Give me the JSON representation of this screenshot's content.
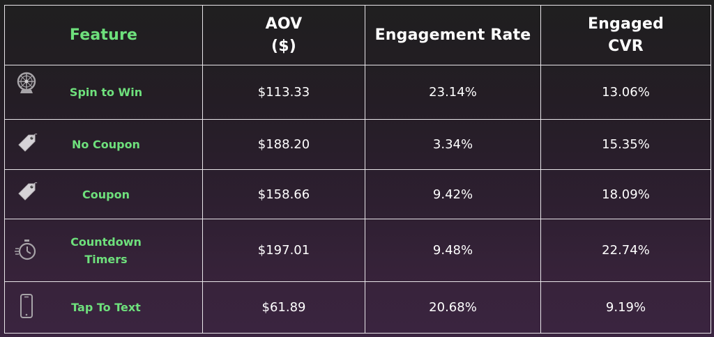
{
  "chart_data": {
    "type": "table",
    "columns": [
      "Feature",
      "AOV ($)",
      "Engagement Rate",
      "Engaged CVR"
    ],
    "header": {
      "feature": "Feature",
      "aov_line1": "AOV",
      "aov_line2": "($)",
      "engagement": "Engagement Rate",
      "cvr_line1": "Engaged",
      "cvr_line2": "CVR"
    },
    "rows": [
      {
        "feature_line1": "Spin to Win",
        "feature_line2": "",
        "icon": "wheel-icon",
        "aov": "$113.33",
        "engagement_rate": "23.14%",
        "engaged_cvr": "13.06%"
      },
      {
        "feature_line1": "No Coupon",
        "feature_line2": "",
        "icon": "price-tag-icon",
        "aov": "$188.20",
        "engagement_rate": "3.34%",
        "engaged_cvr": "15.35%"
      },
      {
        "feature_line1": "Coupon",
        "feature_line2": "",
        "icon": "price-tag-icon",
        "aov": "$158.66",
        "engagement_rate": "9.42%",
        "engaged_cvr": "18.09%"
      },
      {
        "feature_line1": "Countdown",
        "feature_line2": "Timers",
        "icon": "stopwatch-icon",
        "aov": "$197.01",
        "engagement_rate": "9.48%",
        "engaged_cvr": "22.74%"
      },
      {
        "feature_line1": "Tap To Text",
        "feature_line2": "",
        "icon": "smartphone-icon",
        "aov": "$61.89",
        "engagement_rate": "20.68%",
        "engaged_cvr": "9.19%"
      }
    ]
  },
  "colors": {
    "accent_green": "#6ee07c",
    "text_white": "#ffffff",
    "grid_line": "#e9e6ea",
    "bg_top": "#1f1f1f",
    "bg_bottom": "#3a2440"
  }
}
